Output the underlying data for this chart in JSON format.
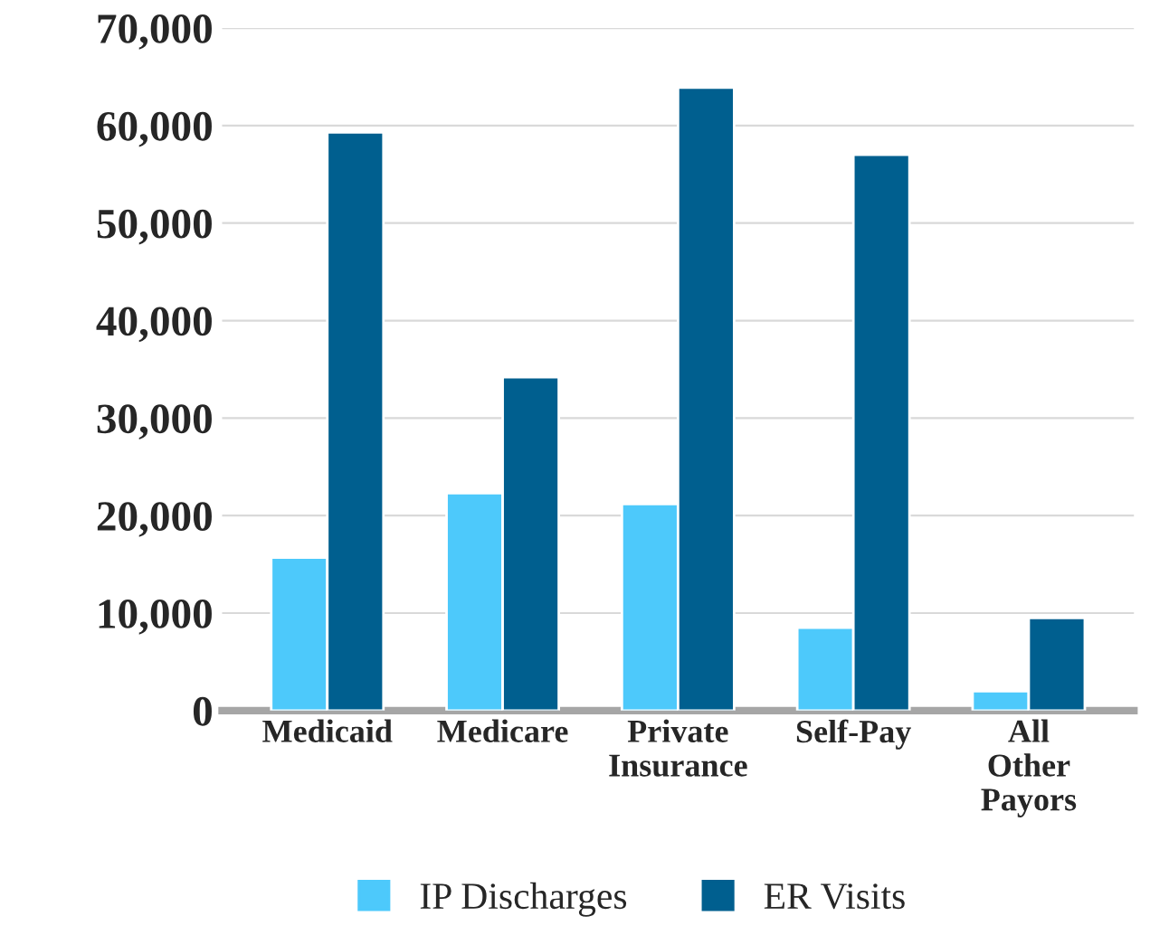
{
  "chart_data": {
    "type": "bar",
    "categories": [
      "Medicaid",
      "Medicare",
      "Private\nInsurance",
      "Self-Pay",
      "All\nOther\nPayors"
    ],
    "series": [
      {
        "name": "IP Discharges",
        "color": "#4dc9fb",
        "values": [
          15700,
          22300,
          21200,
          8500,
          2000
        ]
      },
      {
        "name": "ER Visits",
        "color": "#005f8f",
        "values": [
          59300,
          34200,
          63900,
          57000,
          9500
        ]
      }
    ],
    "ylim": [
      0,
      70000
    ],
    "yticks": [
      {
        "value": 0,
        "label": "0"
      },
      {
        "value": 10000,
        "label": "10,000"
      },
      {
        "value": 20000,
        "label": "20,000"
      },
      {
        "value": 30000,
        "label": "30,000"
      },
      {
        "value": 40000,
        "label": "40,000"
      },
      {
        "value": 50000,
        "label": "50,000"
      },
      {
        "value": 60000,
        "label": "60,000"
      },
      {
        "value": 70000,
        "label": "70,000"
      }
    ],
    "grid": "y",
    "legend": "bottom"
  }
}
